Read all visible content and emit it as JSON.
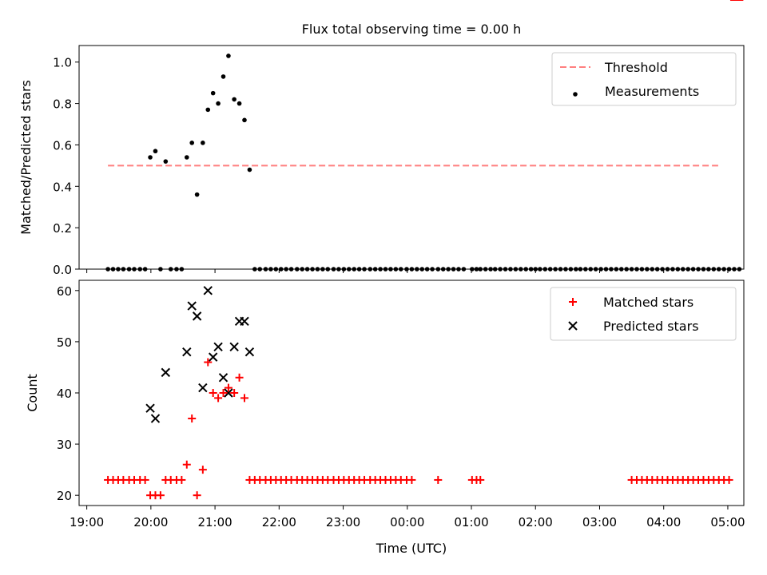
{
  "chart_data": {
    "type": "scatter",
    "title": "Flux total observing time = 0.00 h",
    "xlabel": "Time (UTC)",
    "x_ticks": [
      "19:00",
      "20:00",
      "21:00",
      "22:00",
      "23:00",
      "00:00",
      "01:00",
      "02:00",
      "03:00",
      "04:00",
      "05:00"
    ],
    "xlim": [
      -0.12,
      10.25
    ],
    "x_unit": "hours after 19:00 UTC",
    "panels": [
      {
        "ylabel": "Matched/Predicted stars",
        "ylim": [
          0,
          1.08
        ],
        "y_ticks": [
          "0.0",
          "0.2",
          "0.4",
          "0.6",
          "0.8",
          "1.0"
        ],
        "legend_position": "top-right",
        "series": [
          {
            "name": "Threshold",
            "style": "dashed-line",
            "color": "#ff7f7f",
            "x": [
              0.33,
              9.85
            ],
            "y": [
              0.5,
              0.5
            ]
          },
          {
            "name": "Measurements",
            "style": "dot",
            "color": "#000000",
            "x": [
              0.33,
              0.41,
              0.49,
              0.57,
              0.66,
              0.74,
              0.83,
              0.91,
              0.99,
              1.07,
              1.15,
              1.23,
              1.31,
              1.4,
              1.48,
              1.56,
              1.64,
              1.72,
              1.81,
              1.89,
              1.97,
              2.05,
              2.13,
              2.21,
              2.3,
              2.38,
              2.46,
              2.54,
              2.62,
              2.7,
              2.79,
              2.87,
              2.95,
              3.03,
              3.11,
              3.19,
              3.28,
              3.36,
              3.44,
              3.52,
              3.6,
              3.68,
              3.76,
              3.85,
              3.93,
              4.01,
              4.09,
              4.17,
              4.25,
              4.33,
              4.42,
              4.5,
              4.58,
              4.66,
              4.74,
              4.82,
              4.9,
              4.99,
              5.07,
              5.15,
              5.23,
              5.31,
              5.39,
              5.48,
              5.56,
              5.64,
              5.72,
              5.8,
              5.88,
              6.01,
              6.08,
              6.14,
              6.22,
              6.3,
              6.37,
              6.45,
              6.53,
              6.61,
              6.69,
              6.77,
              6.85,
              6.93,
              7.0,
              7.07,
              7.15,
              7.23,
              7.31,
              7.39,
              7.47,
              7.55,
              7.63,
              7.7,
              7.78,
              7.86,
              7.94,
              8.02,
              8.1,
              8.18,
              8.26,
              8.34,
              8.42,
              8.5,
              8.58,
              8.66,
              8.74,
              8.82,
              8.9,
              8.98,
              9.06,
              9.14,
              9.22,
              9.3,
              9.38,
              9.46,
              9.54,
              9.62,
              9.7,
              9.78,
              9.86,
              9.94,
              10.02,
              10.1,
              10.18
            ],
            "y": [
              0,
              0,
              0,
              0,
              0,
              0,
              0,
              0,
              0.54,
              0.57,
              0,
              0.52,
              0,
              0,
              0,
              0.54,
              0.61,
              0.36,
              0.61,
              0.77,
              0.85,
              0.8,
              0.93,
              1.03,
              0.82,
              0.8,
              0.72,
              0.48,
              0,
              0,
              0,
              0,
              0,
              0,
              0,
              0,
              0,
              0,
              0,
              0,
              0,
              0,
              0,
              0,
              0,
              0,
              0,
              0,
              0,
              0,
              0,
              0,
              0,
              0,
              0,
              0,
              0,
              0,
              0,
              0,
              0,
              0,
              0,
              0,
              0,
              0,
              0,
              0,
              0,
              0,
              0,
              0,
              0,
              0,
              0,
              0,
              0,
              0,
              0,
              0,
              0,
              0,
              0,
              0,
              0,
              0,
              0,
              0,
              0,
              0,
              0,
              0,
              0,
              0,
              0,
              0,
              0,
              0,
              0,
              0,
              0,
              0,
              0,
              0,
              0,
              0,
              0,
              0,
              0,
              0,
              0,
              0,
              0,
              0,
              0,
              0,
              0,
              0,
              0,
              0,
              0,
              0,
              0
            ],
            "x_visible": [
              0.33,
              0.41,
              0.49,
              0.57,
              0.66,
              0.74,
              0.83,
              0.91,
              0.99,
              1.07,
              1.15,
              1.23,
              1.31,
              1.4,
              1.48,
              1.56,
              1.64,
              1.72,
              1.81,
              1.89,
              1.97,
              2.05,
              2.13,
              2.21,
              2.3,
              2.38,
              2.46,
              2.54,
              2.62,
              2.7,
              2.79,
              2.87,
              2.95,
              3.03,
              3.11,
              3.19,
              3.28,
              3.36,
              3.44,
              3.52,
              3.6,
              3.68,
              3.76,
              3.85,
              3.93,
              4.01,
              4.09,
              4.17,
              4.25,
              4.33,
              4.42,
              4.5,
              4.58,
              4.66,
              4.74,
              4.82,
              4.9,
              4.99,
              5.07,
              5.15,
              5.23,
              5.31,
              5.39,
              5.48,
              5.56,
              5.64,
              5.72,
              5.8,
              5.88,
              6.01,
              6.08,
              6.14,
              6.22,
              6.3,
              6.37,
              6.45,
              6.53,
              6.61,
              6.69,
              6.77,
              6.85,
              6.93,
              7.0,
              7.07,
              7.15,
              7.23,
              7.31,
              7.39,
              7.47,
              7.55,
              7.63,
              7.7,
              7.78,
              7.86,
              7.94,
              8.02,
              8.1,
              8.18,
              8.26,
              8.34,
              8.42,
              8.5,
              8.58,
              8.66,
              8.74,
              8.82,
              8.9,
              8.98,
              9.06,
              9.14,
              9.22,
              9.3,
              9.38,
              9.46,
              9.54,
              9.62,
              9.7,
              9.78,
              9.86,
              9.94,
              10.02,
              10.1,
              10.18
            ]
          }
        ]
      },
      {
        "ylabel": "Count",
        "ylim": [
          18,
          62
        ],
        "y_ticks": [
          "20",
          "30",
          "40",
          "50",
          "60"
        ],
        "legend_position": "top-right",
        "series": [
          {
            "name": "Matched stars",
            "style": "plus",
            "color": "#ff0000",
            "x": [],
            "y": []
          },
          {
            "name": "Predicted stars",
            "style": "x",
            "color": "#000000",
            "x": [
              0.99,
              1.07,
              1.23,
              1.56,
              1.64,
              1.72,
              1.81,
              1.89,
              1.97,
              2.05,
              2.13,
              2.21,
              2.3,
              2.38,
              2.46,
              2.54
            ],
            "y": [
              37,
              35,
              44,
              48,
              57,
              55,
              41,
              60,
              47,
              49,
              43,
              40,
              49,
              54,
              54,
              48
            ]
          }
        ]
      }
    ]
  }
}
